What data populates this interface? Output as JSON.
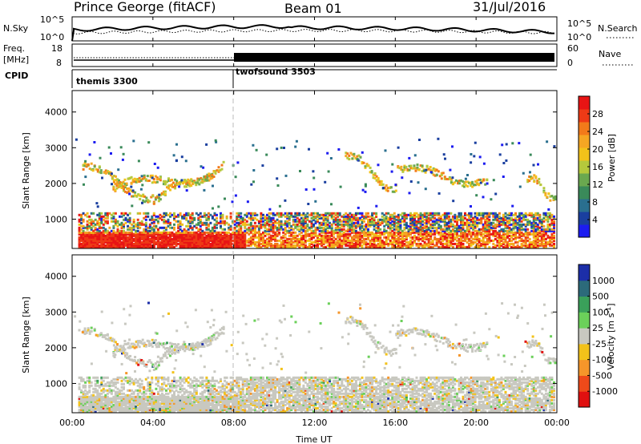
{
  "header": {
    "station": "Prince George (fitACF)",
    "beam": "Beam 01",
    "date": "31/Jul/2016"
  },
  "strips": {
    "sky": {
      "left_label": "N.Sky",
      "ticks_left": [
        "10^5",
        "10^0"
      ],
      "right_label": "N.Search",
      "ticks_right": [
        "10^5",
        "10^0"
      ]
    },
    "freq": {
      "left_label_1": "Freq.",
      "left_label_2": "[MHz]",
      "ticks_left": [
        "18",
        "8"
      ],
      "right_label": "Nave",
      "ticks_right": [
        "60",
        "0"
      ]
    },
    "cpid": {
      "label": "CPID",
      "modes": [
        "themis 3300",
        "twofsound 3503"
      ]
    }
  },
  "chart_data": [
    {
      "type": "heatmap",
      "panel": "power",
      "ylabel": "Slant Range [km]",
      "xlabel": "",
      "x_ticks": [
        "00:00",
        "04:00",
        "08:00",
        "12:00",
        "16:00",
        "20:00",
        "00:00"
      ],
      "y_ticks": [
        1000,
        2000,
        3000,
        4000
      ],
      "xlim_hours": [
        0,
        24
      ],
      "ylim_km": [
        180,
        4600
      ],
      "colorbar": {
        "label": "Power [dB]",
        "ticks": [
          4,
          8,
          12,
          16,
          20,
          24,
          28
        ],
        "range": [
          0,
          32
        ],
        "colors": [
          "#1c1cf0",
          "#1a3f9f",
          "#2a6f8f",
          "#3a8a5a",
          "#6aa84f",
          "#b5c93c",
          "#f2c21a",
          "#f5a623",
          "#f27a1a",
          "#ee3a16",
          "#e81414"
        ]
      }
    },
    {
      "type": "heatmap",
      "panel": "velocity",
      "ylabel": "Slant Range [km]",
      "xlabel": "Time UT",
      "x_ticks": [
        "00:00",
        "04:00",
        "08:00",
        "12:00",
        "16:00",
        "20:00",
        "00:00"
      ],
      "y_ticks": [
        1000,
        2000,
        3000,
        4000
      ],
      "xlim_hours": [
        0,
        24
      ],
      "ylim_km": [
        180,
        4600
      ],
      "colorbar": {
        "label": "Velocity [m s",
        "label_superscript": "-1",
        "label_close": "]",
        "ticks": [
          "1000",
          "500",
          "100",
          "25",
          "-25",
          "-100",
          "-500",
          "-1000"
        ],
        "colors": [
          "#1c2ea8",
          "#2c6a7a",
          "#3aa05a",
          "#6bd05a",
          "#c8c8c0",
          "#f2c21a",
          "#f5962a",
          "#ee4a1a",
          "#e01010"
        ]
      }
    }
  ]
}
